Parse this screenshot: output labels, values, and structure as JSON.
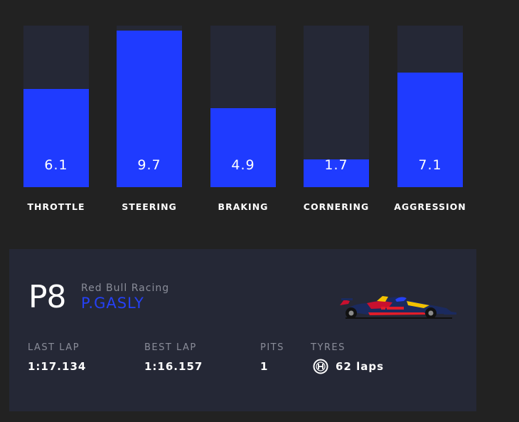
{
  "stats": [
    {
      "label": "THROTTLE",
      "value": "6.1",
      "level": 6.1
    },
    {
      "label": "STEERING",
      "value": "9.7",
      "level": 9.7
    },
    {
      "label": "BRAKING",
      "value": "4.9",
      "level": 4.9
    },
    {
      "label": "CORNERING",
      "value": "1.7",
      "level": 1.7
    },
    {
      "label": "AGGRESSION",
      "value": "7.1",
      "level": 7.1
    }
  ],
  "stats_max": 10,
  "colors": {
    "accent": "#1f3bff",
    "background": "#222222",
    "panel": "#252836",
    "muted_text": "#8a8d99"
  },
  "driver": {
    "position": "P8",
    "team": "Red Bull Racing",
    "name": "P.GASLY",
    "car_icon": "f1-car-icon"
  },
  "laps": {
    "last_lap_label": "LAST LAP",
    "last_lap_value": "1:17.134",
    "best_lap_label": "BEST LAP",
    "best_lap_value": "1:16.157",
    "pits_label": "PITS",
    "pits_value": "1",
    "tyres_label": "TYRES",
    "tyre_compound_icon": "hard-tyre-icon",
    "tyres_value": "62 laps"
  }
}
